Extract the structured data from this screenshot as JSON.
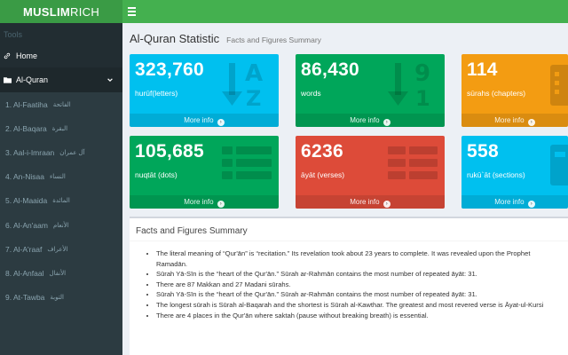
{
  "brand": {
    "bold": "MUSLIM",
    "light": "RICH"
  },
  "sidebar": {
    "header": "Tools",
    "home_label": "Home",
    "quran_label": "Al-Quran",
    "surahs": [
      {
        "en": "1. Al-Faatiha",
        "ar": "الفاتحة"
      },
      {
        "en": "2. Al-Baqara",
        "ar": "البقرة"
      },
      {
        "en": "3. Aal-i-Imraan",
        "ar": "آل عمران"
      },
      {
        "en": "4. An-Nisaa",
        "ar": "النساء"
      },
      {
        "en": "5. Al-Maaida",
        "ar": "المائدة"
      },
      {
        "en": "6. Al-An'aam",
        "ar": "الأنعام"
      },
      {
        "en": "7. Al-A'raaf",
        "ar": "الأعراف"
      },
      {
        "en": "8. Al-Anfaal",
        "ar": "الأنفال"
      },
      {
        "en": "9. At-Tawba",
        "ar": "التوبة"
      }
    ]
  },
  "page": {
    "title": "Al-Quran Statistic",
    "subtitle": "Facts and Figures Summary"
  },
  "stats": [
    {
      "value": "323,760",
      "label": "hurūf(letters)",
      "more": "More info",
      "color": "#00c0ef",
      "icon": "sort-alpha-icon"
    },
    {
      "value": "86,430",
      "label": "words",
      "more": "More info",
      "color": "#00a65a",
      "icon": "sort-numeric-icon"
    },
    {
      "value": "114",
      "label": "sūrahs (chapters)",
      "more": "More info",
      "color": "#f39c12",
      "icon": "calculator-icon"
    },
    {
      "value": "105,685",
      "label": "nuqtāt (dots)",
      "more": "More info",
      "color": "#00a65a",
      "icon": "list-icon"
    },
    {
      "value": "6236",
      "label": "āyāt (verses)",
      "more": "More info",
      "color": "#dd4b39",
      "icon": "table-icon"
    },
    {
      "value": "558",
      "label": "rukū`āt (sections)",
      "more": "More info",
      "color": "#00c0ef",
      "icon": "calculator-icon"
    }
  ],
  "facts": {
    "title": "Facts and Figures Summary",
    "items": [
      "The literal meaning of “Qur'ān” is “recitation.” Its revelation took about 23 years to complete. It was revealed upon the Prophet",
      "Ramadān.",
      "Sūrah Yā-Sīn is the “heart of the Qur'ān.” Sūrah ar-Rahmān contains the most number of repeated āyāt: 31.",
      "There are 87 Makkan and 27 Madani sūrahs.",
      "Sūrah Yā-Sīn is the “heart of the Qur'ān.” Sūrah ar-Rahmān contains the most number of repeated āyāt: 31.",
      "The longest sūrah is Sūrah al-Baqarah and the shortest is Sūrah al-Kawthar. The greatest and most revered verse is Āyat-ul-Kursi",
      "There are 4 places in the Qur'ān where saktah (pause without breaking breath) is essential."
    ]
  }
}
